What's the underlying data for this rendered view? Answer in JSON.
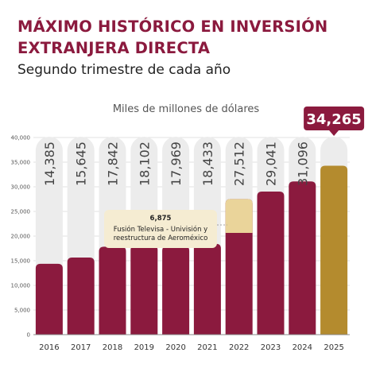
{
  "title_line1": "MÁXIMO HISTÓRICO EN INVERSIÓN",
  "title_line2": "EXTRANJERA DIRECTA",
  "subtitle": "Segundo trimestre de cada año",
  "unit_label": "Miles de millones de dólares",
  "highlight_label": "34,265",
  "annotation": {
    "value": "6,875",
    "line1": "Fusión Televisa - Univisión y",
    "line2": "reestructura de Aeroméxico"
  },
  "colors": {
    "bar": "#8b1a3e",
    "highlight": "#b48b2e",
    "annotation_fill": "#ead49a",
    "track": "#ececec",
    "title": "#8b1a3e"
  },
  "chart_data": {
    "type": "bar",
    "categories": [
      "2016",
      "2017",
      "2018",
      "2019",
      "2020",
      "2021",
      "2022",
      "2023",
      "2024",
      "2025"
    ],
    "values": [
      14385,
      15645,
      17842,
      18102,
      17969,
      18433,
      27512,
      29041,
      31096,
      34265
    ],
    "value_labels": [
      "14,385",
      "15,645",
      "17,842",
      "18,102",
      "17,969",
      "18,433",
      "27,512",
      "29,041",
      "31,096",
      ""
    ],
    "stacked_segment": {
      "category": "2022",
      "value": 6875
    },
    "highlight_category": "2025",
    "yticks": [
      0,
      5000,
      10000,
      15000,
      20000,
      25000,
      30000,
      35000,
      40000
    ],
    "ytick_labels": [
      "0",
      "5,000",
      "10,000",
      "15,000",
      "20,000",
      "25,000",
      "30,000",
      "35,000",
      "40,000"
    ],
    "ylim": [
      0,
      42000
    ],
    "grid": true
  }
}
